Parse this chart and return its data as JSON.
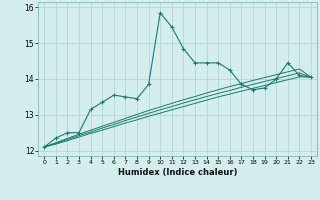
{
  "xlabel": "Humidex (Indice chaleur)",
  "bg_color": "#d4eeed",
  "line_color": "#1a7a6e",
  "grid_color": "#aed4d0",
  "x_data": [
    0,
    1,
    2,
    3,
    4,
    5,
    6,
    7,
    8,
    9,
    10,
    11,
    12,
    13,
    14,
    15,
    16,
    17,
    18,
    19,
    20,
    21,
    22,
    23
  ],
  "y_main": [
    12.1,
    12.35,
    12.5,
    12.5,
    13.15,
    13.35,
    13.55,
    13.5,
    13.45,
    13.85,
    15.85,
    15.45,
    14.85,
    14.45,
    14.45,
    14.45,
    14.25,
    13.85,
    13.7,
    13.75,
    14.0,
    14.45,
    14.1,
    14.05
  ],
  "y_line1": [
    12.1,
    12.22,
    12.34,
    12.46,
    12.57,
    12.68,
    12.79,
    12.9,
    13.01,
    13.12,
    13.22,
    13.32,
    13.42,
    13.51,
    13.61,
    13.7,
    13.79,
    13.87,
    13.96,
    14.04,
    14.12,
    14.2,
    14.28,
    14.05
  ],
  "y_line2": [
    12.1,
    12.2,
    12.31,
    12.42,
    12.52,
    12.63,
    12.73,
    12.84,
    12.94,
    13.04,
    13.14,
    13.23,
    13.33,
    13.42,
    13.51,
    13.6,
    13.68,
    13.77,
    13.85,
    13.93,
    14.01,
    14.09,
    14.17,
    14.05
  ],
  "y_line3": [
    12.1,
    12.18,
    12.28,
    12.38,
    12.48,
    12.57,
    12.67,
    12.77,
    12.86,
    12.96,
    13.05,
    13.14,
    13.23,
    13.32,
    13.41,
    13.5,
    13.58,
    13.66,
    13.74,
    13.82,
    13.9,
    13.98,
    14.06,
    14.05
  ],
  "ylim": [
    11.85,
    16.15
  ],
  "xlim": [
    -0.5,
    23.5
  ],
  "yticks": [
    12,
    13,
    14,
    15,
    16
  ],
  "xticks": [
    0,
    1,
    2,
    3,
    4,
    5,
    6,
    7,
    8,
    9,
    10,
    11,
    12,
    13,
    14,
    15,
    16,
    17,
    18,
    19,
    20,
    21,
    22,
    23
  ]
}
